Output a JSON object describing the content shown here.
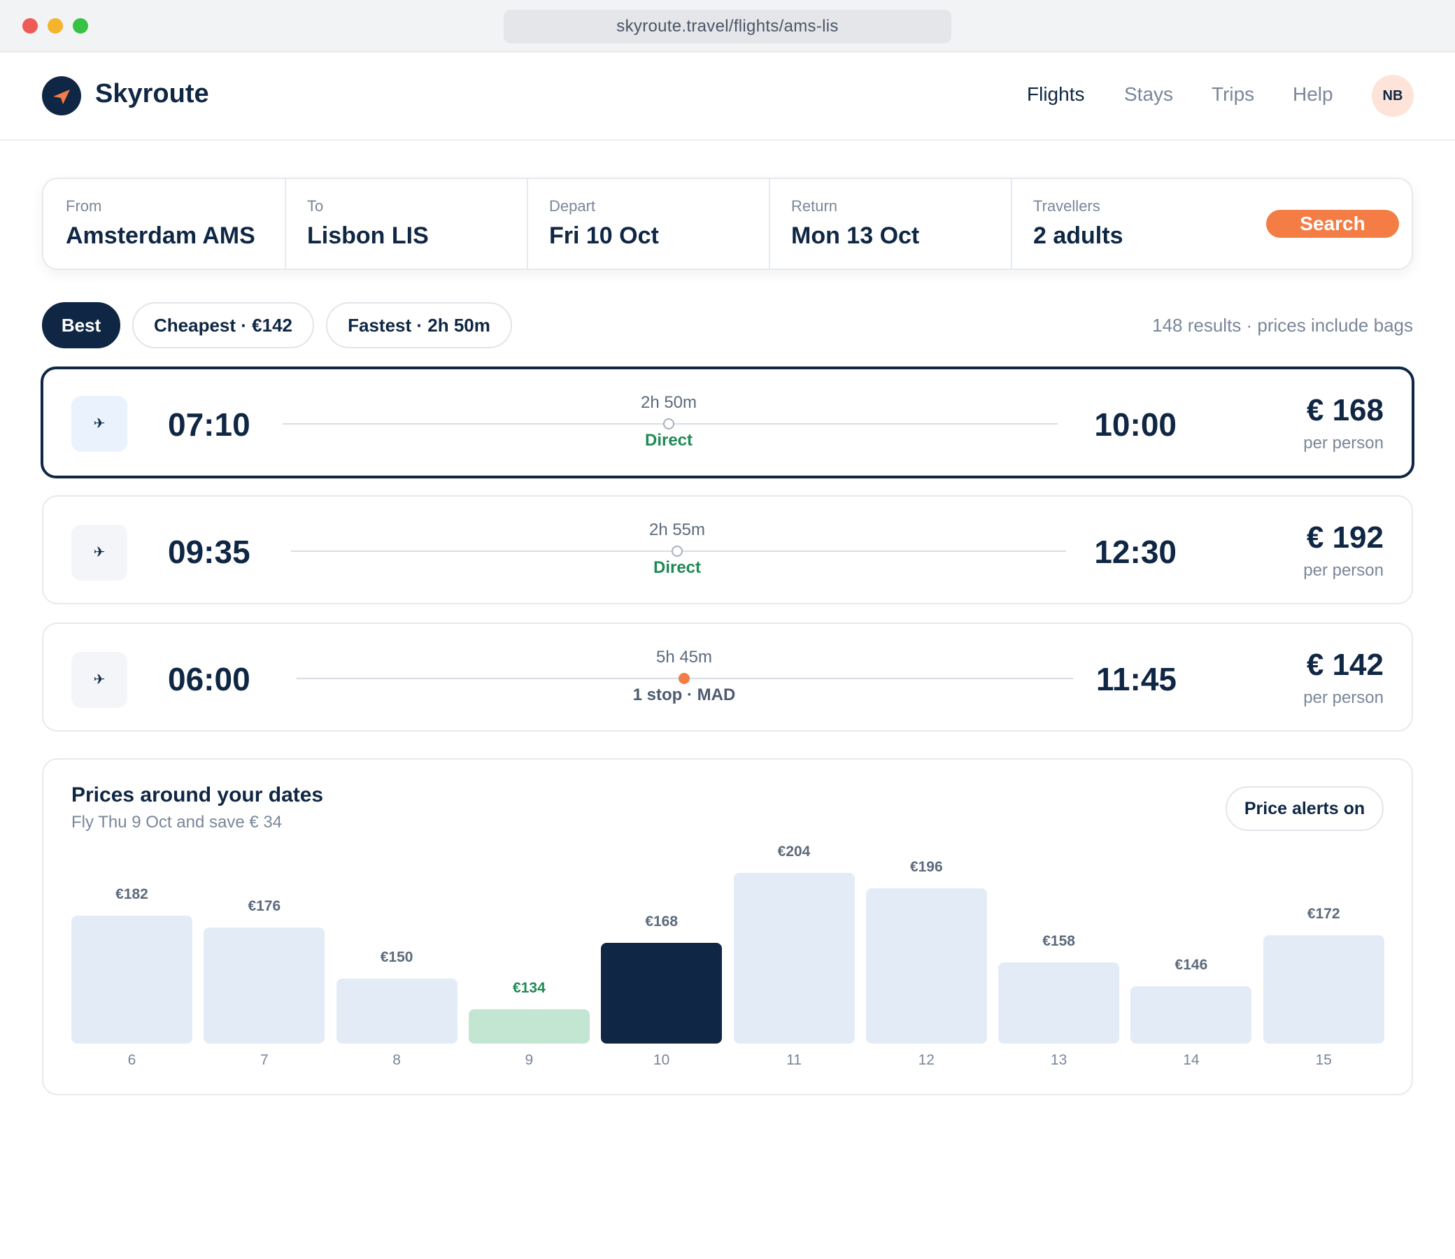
{
  "browser": {
    "url": "skyroute.travel/flights/ams-lis"
  },
  "header": {
    "brand": "Skyroute",
    "nav": [
      "Flights",
      "Stays",
      "Trips",
      "Help"
    ],
    "active_nav": "Flights",
    "avatar_initials": "NB"
  },
  "search": {
    "from_label": "From",
    "from_value": "Amsterdam AMS",
    "to_label": "To",
    "to_value": "Lisbon LIS",
    "depart_label": "Depart",
    "depart_value": "Fri 10 Oct",
    "return_label": "Return",
    "return_value": "Mon 13 Oct",
    "travellers_label": "Travellers",
    "travellers_value": "2 adults",
    "button_label": "Search"
  },
  "sort_tabs": [
    "Best",
    "Cheapest · €142",
    "Fastest · 2h 50m"
  ],
  "active_tab": "Best",
  "results_meta": "148 results · prices include bags",
  "flights": [
    {
      "depart": "07:10",
      "arrive": "10:00",
      "duration": "2h 50m",
      "stops": "Direct",
      "price": "€ 168",
      "per": "per person",
      "selected": true,
      "icon": "airplane-icon"
    },
    {
      "depart": "09:35",
      "arrive": "12:30",
      "duration": "2h 55m",
      "stops": "Direct",
      "price": "€ 192",
      "per": "per person",
      "selected": false,
      "icon": "airplane-icon"
    },
    {
      "depart": "06:00",
      "arrive": "11:45",
      "duration": "5h 45m",
      "stops": "1 stop · MAD",
      "price": "€ 142",
      "per": "per person",
      "selected": false,
      "icon": "airplane-icon"
    }
  ],
  "calendar": {
    "title": "Prices around your dates",
    "subtitle": "Fly Thu 9 Oct and save € 34",
    "alerts_label": "Price alerts on"
  },
  "chart_data": {
    "type": "bar",
    "categories": [
      "6",
      "7",
      "8",
      "9",
      "10",
      "11",
      "12",
      "13",
      "14",
      "15"
    ],
    "values": [
      182,
      176,
      150,
      134,
      168,
      204,
      196,
      158,
      146,
      172
    ],
    "labels": [
      "€182",
      "€176",
      "€150",
      "€134",
      "€168",
      "€204",
      "€196",
      "€158",
      "€146",
      "€172"
    ],
    "highlight_cheapest": "9",
    "highlight_selected": "10",
    "colors": {
      "default": "#e3ecf6",
      "cheapest": "#c2e6d2",
      "selected": "#0f2744"
    },
    "title": "",
    "xlabel": "",
    "ylabel": "",
    "grid": false
  },
  "colors": {
    "brand": "#0f2744",
    "accent": "#f47c45",
    "direct": "#1f8a55"
  }
}
